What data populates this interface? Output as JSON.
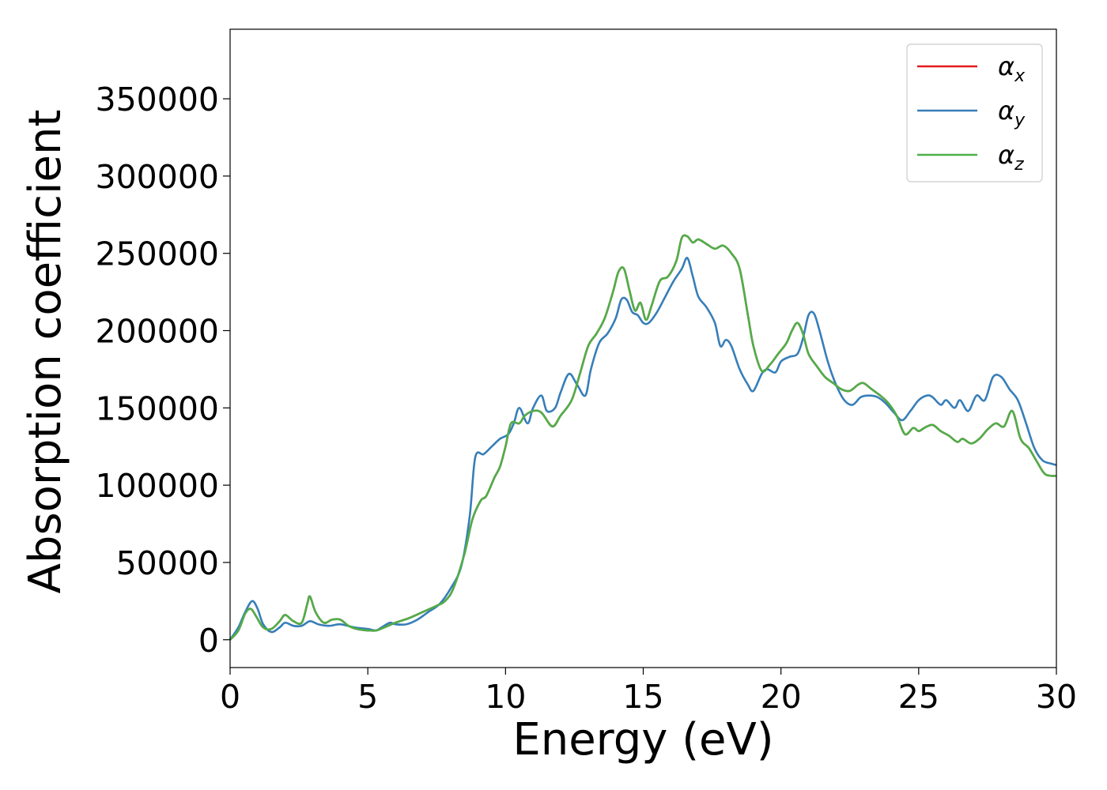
{
  "chart_data": {
    "type": "line",
    "title": "",
    "xlabel": "Energy (eV)",
    "ylabel": "Absorption coefficient",
    "xlim": [
      0,
      30
    ],
    "ylim": [
      -18000,
      395000
    ],
    "xticks": [
      "0",
      "5",
      "10",
      "15",
      "20",
      "25",
      "30"
    ],
    "yticks": [
      "0",
      "50000",
      "100000",
      "150000",
      "200000",
      "250000",
      "300000",
      "350000"
    ],
    "grid": false,
    "legend_position": "top-right",
    "colors": {
      "x": "#e41a1c",
      "y": "#377eb8",
      "z": "#4daf4a"
    },
    "series": [
      {
        "name": "α_x",
        "symbol": "α",
        "subscript": "x",
        "color": "#e41a1c",
        "x": [
          0,
          0.3,
          0.55,
          0.75,
          0.95,
          1.2,
          1.5,
          1.8,
          2.0,
          2.3,
          2.6,
          2.8,
          2.9,
          3.1,
          3.4,
          3.7,
          4.0,
          4.3,
          4.6,
          5.0,
          5.3,
          5.6,
          6.0,
          6.5,
          7.0,
          7.5,
          7.8,
          8.1,
          8.5,
          8.8,
          9.1,
          9.3,
          9.6,
          9.8,
          10.0,
          10.2,
          10.5,
          10.7,
          11.0,
          11.3,
          11.7,
          12.0,
          12.4,
          12.7,
          13.0,
          13.3,
          13.6,
          13.9,
          14.1,
          14.3,
          14.5,
          14.7,
          14.9,
          15.1,
          15.3,
          15.6,
          15.9,
          16.2,
          16.4,
          16.6,
          16.8,
          17.0,
          17.3,
          17.6,
          17.9,
          18.2,
          18.5,
          18.8,
          19.0,
          19.3,
          19.6,
          19.9,
          20.2,
          20.4,
          20.6,
          20.8,
          21.0,
          21.3,
          21.6,
          21.9,
          22.2,
          22.5,
          22.8,
          23.0,
          23.3,
          23.6,
          23.9,
          24.2,
          24.5,
          24.8,
          25.0,
          25.2,
          25.5,
          25.8,
          26.1,
          26.4,
          26.6,
          26.9,
          27.2,
          27.5,
          27.8,
          28.1,
          28.4,
          28.7,
          29.0,
          29.3,
          29.6,
          30.0
        ],
        "y": [
          0,
          6000,
          17000,
          20000,
          15000,
          8000,
          7000,
          12000,
          16000,
          12000,
          11000,
          23000,
          28000,
          18000,
          11000,
          13000,
          13000,
          9000,
          7000,
          6000,
          6000,
          8000,
          11000,
          14000,
          18000,
          22000,
          25000,
          33000,
          55000,
          78000,
          90000,
          93000,
          105000,
          112000,
          125000,
          140000,
          140000,
          145000,
          148000,
          147000,
          138000,
          145000,
          155000,
          172000,
          190000,
          198000,
          208000,
          225000,
          238000,
          240000,
          226000,
          213000,
          218000,
          207000,
          216000,
          232000,
          235000,
          245000,
          260000,
          261000,
          257000,
          259000,
          256000,
          253000,
          255000,
          250000,
          240000,
          210000,
          190000,
          174000,
          178000,
          185000,
          192000,
          200000,
          205000,
          198000,
          185000,
          177000,
          170000,
          166000,
          162000,
          161000,
          165000,
          166000,
          162000,
          158000,
          153000,
          145000,
          133000,
          137000,
          135000,
          137000,
          139000,
          135000,
          132000,
          128000,
          130000,
          127000,
          130000,
          136000,
          140000,
          138000,
          148000,
          130000,
          124000,
          115000,
          107000,
          106000
        ]
      },
      {
        "name": "α_y",
        "symbol": "α",
        "subscript": "y",
        "color": "#377eb8",
        "x": [
          0,
          0.3,
          0.55,
          0.8,
          1.0,
          1.2,
          1.5,
          1.8,
          2.0,
          2.3,
          2.6,
          2.9,
          3.2,
          3.6,
          4.0,
          4.5,
          5.0,
          5.3,
          5.5,
          5.8,
          6.0,
          6.4,
          6.8,
          7.2,
          7.6,
          8.0,
          8.4,
          8.7,
          8.9,
          9.2,
          9.5,
          9.8,
          10.1,
          10.3,
          10.5,
          10.8,
          11.0,
          11.3,
          11.5,
          11.8,
          12.0,
          12.3,
          12.6,
          12.9,
          13.1,
          13.4,
          13.7,
          14.0,
          14.2,
          14.4,
          14.6,
          14.8,
          15.0,
          15.2,
          15.5,
          15.8,
          16.1,
          16.4,
          16.6,
          16.8,
          17.0,
          17.3,
          17.6,
          17.8,
          18.0,
          18.2,
          18.5,
          18.8,
          19.0,
          19.3,
          19.5,
          19.8,
          20.0,
          20.3,
          20.6,
          20.8,
          21.0,
          21.2,
          21.4,
          21.7,
          22.0,
          22.3,
          22.6,
          22.9,
          23.2,
          23.5,
          23.8,
          24.1,
          24.4,
          24.7,
          25.0,
          25.3,
          25.5,
          25.8,
          26.0,
          26.3,
          26.5,
          26.8,
          27.1,
          27.4,
          27.7,
          28.0,
          28.3,
          28.6,
          28.9,
          29.2,
          29.5,
          29.8,
          30.0
        ],
        "y": [
          0,
          8000,
          18000,
          25000,
          20000,
          10000,
          5000,
          8000,
          11000,
          9000,
          9000,
          12000,
          10000,
          9000,
          10000,
          8000,
          7000,
          6000,
          8000,
          11000,
          10000,
          10000,
          13000,
          18000,
          23000,
          33000,
          48000,
          80000,
          118000,
          120000,
          125000,
          130000,
          133000,
          140000,
          150000,
          140000,
          150000,
          158000,
          148000,
          150000,
          160000,
          172000,
          165000,
          158000,
          175000,
          192000,
          198000,
          208000,
          220000,
          220000,
          212000,
          210000,
          205000,
          205000,
          212000,
          222000,
          232000,
          240000,
          247000,
          235000,
          222000,
          215000,
          205000,
          190000,
          194000,
          190000,
          175000,
          165000,
          161000,
          172000,
          175000,
          173000,
          180000,
          183000,
          185000,
          195000,
          210000,
          211000,
          200000,
          180000,
          165000,
          155000,
          152000,
          157000,
          158000,
          157000,
          153000,
          147000,
          142000,
          148000,
          155000,
          158000,
          157000,
          152000,
          155000,
          150000,
          155000,
          148000,
          158000,
          155000,
          170000,
          170000,
          162000,
          155000,
          140000,
          124000,
          116000,
          114000,
          113000
        ]
      },
      {
        "name": "α_z",
        "symbol": "α",
        "subscript": "z",
        "color": "#4daf4a",
        "x": [
          0,
          0.3,
          0.55,
          0.75,
          0.95,
          1.2,
          1.5,
          1.8,
          2.0,
          2.3,
          2.6,
          2.8,
          2.9,
          3.1,
          3.4,
          3.7,
          4.0,
          4.3,
          4.6,
          5.0,
          5.3,
          5.6,
          6.0,
          6.5,
          7.0,
          7.5,
          7.8,
          8.1,
          8.5,
          8.8,
          9.1,
          9.3,
          9.6,
          9.8,
          10.0,
          10.2,
          10.5,
          10.7,
          11.0,
          11.3,
          11.7,
          12.0,
          12.4,
          12.7,
          13.0,
          13.3,
          13.6,
          13.9,
          14.1,
          14.3,
          14.5,
          14.7,
          14.9,
          15.1,
          15.3,
          15.6,
          15.9,
          16.2,
          16.4,
          16.6,
          16.8,
          17.0,
          17.3,
          17.6,
          17.9,
          18.2,
          18.5,
          18.8,
          19.0,
          19.3,
          19.6,
          19.9,
          20.2,
          20.4,
          20.6,
          20.8,
          21.0,
          21.3,
          21.6,
          21.9,
          22.2,
          22.5,
          22.8,
          23.0,
          23.3,
          23.6,
          23.9,
          24.2,
          24.5,
          24.8,
          25.0,
          25.2,
          25.5,
          25.8,
          26.1,
          26.4,
          26.6,
          26.9,
          27.2,
          27.5,
          27.8,
          28.1,
          28.4,
          28.7,
          29.0,
          29.3,
          29.6,
          30.0
        ],
        "y": [
          0,
          6000,
          17000,
          20000,
          15000,
          8000,
          7000,
          12000,
          16000,
          12000,
          11000,
          23000,
          28000,
          18000,
          11000,
          13000,
          13000,
          9000,
          7000,
          6000,
          6000,
          8000,
          11000,
          14000,
          18000,
          22000,
          25000,
          33000,
          55000,
          78000,
          90000,
          93000,
          105000,
          112000,
          125000,
          140000,
          140000,
          145000,
          148000,
          147000,
          138000,
          145000,
          155000,
          172000,
          190000,
          198000,
          208000,
          225000,
          238000,
          240000,
          226000,
          213000,
          218000,
          207000,
          216000,
          232000,
          235000,
          245000,
          260000,
          261000,
          257000,
          259000,
          256000,
          253000,
          255000,
          250000,
          240000,
          210000,
          190000,
          174000,
          178000,
          185000,
          192000,
          200000,
          205000,
          198000,
          185000,
          177000,
          170000,
          166000,
          162000,
          161000,
          165000,
          166000,
          162000,
          158000,
          153000,
          145000,
          133000,
          137000,
          135000,
          137000,
          139000,
          135000,
          132000,
          128000,
          130000,
          127000,
          130000,
          136000,
          140000,
          138000,
          148000,
          130000,
          124000,
          115000,
          107000,
          106000
        ]
      }
    ]
  }
}
